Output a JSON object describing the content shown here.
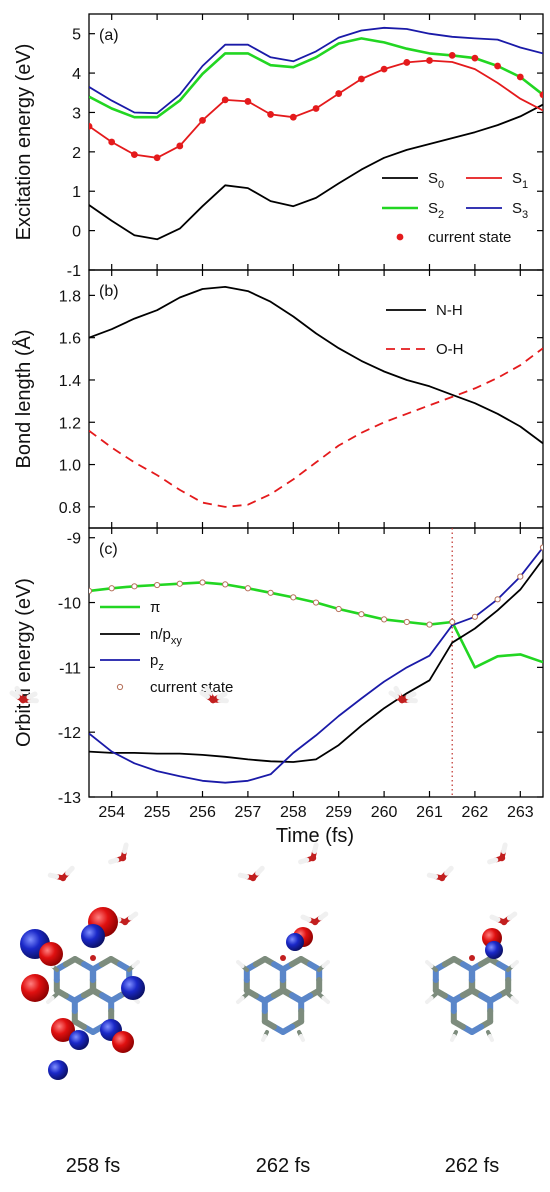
{
  "chart_data": [
    {
      "type": "line",
      "panel_label": "(a)",
      "xlim": [
        253.5,
        263.5
      ],
      "ylim": [
        -1,
        5.5
      ],
      "ylabel": "Excitation energy (eV)",
      "yticks": [
        5,
        4,
        3,
        2,
        1,
        0,
        -1
      ],
      "legend": {
        "placement": "bottom-right"
      },
      "series": [
        {
          "name": "S",
          "sub": "0",
          "color": "#000000",
          "style": "solid",
          "points": [
            [
              253.5,
              0.65
            ],
            [
              254,
              0.25
            ],
            [
              254.5,
              -0.12
            ],
            [
              255,
              -0.22
            ],
            [
              255.5,
              0.05
            ],
            [
              256,
              0.62
            ],
            [
              256.5,
              1.15
            ],
            [
              257,
              1.08
            ],
            [
              257.5,
              0.75
            ],
            [
              258,
              0.62
            ],
            [
              258.5,
              0.83
            ],
            [
              259,
              1.2
            ],
            [
              259.5,
              1.55
            ],
            [
              260,
              1.85
            ],
            [
              260.5,
              2.05
            ],
            [
              261,
              2.2
            ],
            [
              261.5,
              2.35
            ],
            [
              262,
              2.5
            ],
            [
              262.5,
              2.68
            ],
            [
              263,
              2.9
            ],
            [
              263.5,
              3.2
            ]
          ]
        },
        {
          "name": "S",
          "sub": "1",
          "color": "#e41a1c",
          "style": "solid",
          "points": [
            [
              253.5,
              2.65
            ],
            [
              254,
              2.25
            ],
            [
              254.5,
              1.93
            ],
            [
              255,
              1.85
            ],
            [
              255.5,
              2.15
            ],
            [
              256,
              2.8
            ],
            [
              256.5,
              3.32
            ],
            [
              257,
              3.28
            ],
            [
              257.5,
              2.95
            ],
            [
              258,
              2.88
            ],
            [
              258.5,
              3.1
            ],
            [
              259,
              3.48
            ],
            [
              259.5,
              3.85
            ],
            [
              260,
              4.1
            ],
            [
              260.5,
              4.27
            ],
            [
              261,
              4.32
            ],
            [
              261.5,
              4.28
            ],
            [
              262,
              4.1
            ],
            [
              262.5,
              3.75
            ],
            [
              263,
              3.35
            ],
            [
              263.5,
              3.05
            ]
          ]
        },
        {
          "name": "S",
          "sub": "2",
          "color": "#22d622",
          "style": "solid",
          "points": [
            [
              253.5,
              3.4
            ],
            [
              254,
              3.1
            ],
            [
              254.5,
              2.88
            ],
            [
              255,
              2.88
            ],
            [
              255.5,
              3.3
            ],
            [
              256,
              3.98
            ],
            [
              256.5,
              4.5
            ],
            [
              257,
              4.5
            ],
            [
              257.5,
              4.2
            ],
            [
              258,
              4.15
            ],
            [
              258.5,
              4.4
            ],
            [
              259,
              4.75
            ],
            [
              259.5,
              4.88
            ],
            [
              260,
              4.78
            ],
            [
              260.5,
              4.62
            ],
            [
              261,
              4.5
            ],
            [
              261.5,
              4.45
            ],
            [
              262,
              4.38
            ],
            [
              262.5,
              4.18
            ],
            [
              263,
              3.9
            ],
            [
              263.5,
              3.45
            ]
          ]
        },
        {
          "name": "S",
          "sub": "3",
          "color": "#1a1aa8",
          "style": "solid",
          "points": [
            [
              253.5,
              3.65
            ],
            [
              254,
              3.3
            ],
            [
              254.5,
              3.0
            ],
            [
              255,
              2.98
            ],
            [
              255.5,
              3.45
            ],
            [
              256,
              4.18
            ],
            [
              256.5,
              4.72
            ],
            [
              257,
              4.72
            ],
            [
              257.5,
              4.4
            ],
            [
              258,
              4.3
            ],
            [
              258.5,
              4.55
            ],
            [
              259,
              4.9
            ],
            [
              259.5,
              5.08
            ],
            [
              260,
              5.15
            ],
            [
              260.5,
              5.12
            ],
            [
              261,
              5.0
            ],
            [
              261.5,
              4.92
            ],
            [
              262,
              4.88
            ],
            [
              262.5,
              4.85
            ],
            [
              263,
              4.65
            ],
            [
              263.5,
              4.5
            ]
          ]
        },
        {
          "name": "current state",
          "kind": "markers",
          "marker": "filled-circle",
          "color": "#e41a1c",
          "points": [
            [
              253.5,
              2.65
            ],
            [
              254,
              2.25
            ],
            [
              254.5,
              1.93
            ],
            [
              255,
              1.85
            ],
            [
              255.5,
              2.15
            ],
            [
              256,
              2.8
            ],
            [
              256.5,
              3.32
            ],
            [
              257,
              3.28
            ],
            [
              257.5,
              2.95
            ],
            [
              258,
              2.88
            ],
            [
              258.5,
              3.1
            ],
            [
              259,
              3.48
            ],
            [
              259.5,
              3.85
            ],
            [
              260,
              4.1
            ],
            [
              260.5,
              4.27
            ],
            [
              261,
              4.32
            ],
            [
              261.5,
              4.45
            ],
            [
              262,
              4.38
            ],
            [
              262.5,
              4.18
            ],
            [
              263,
              3.9
            ],
            [
              263.5,
              3.45
            ]
          ]
        }
      ]
    },
    {
      "type": "line",
      "panel_label": "(b)",
      "xlim": [
        253.5,
        263.5
      ],
      "ylim": [
        0.7,
        1.92
      ],
      "ylabel": "Bond length (Å)",
      "yticks": [
        "1.8",
        "1.6",
        "1.4",
        "1.2",
        "1.0",
        "0.8"
      ],
      "legend": {
        "placement": "top-right"
      },
      "series": [
        {
          "name": "N-H",
          "color": "#000000",
          "style": "solid",
          "points": [
            [
              253.5,
              1.6
            ],
            [
              254,
              1.64
            ],
            [
              254.5,
              1.69
            ],
            [
              255,
              1.73
            ],
            [
              255.5,
              1.79
            ],
            [
              256,
              1.83
            ],
            [
              256.5,
              1.84
            ],
            [
              257,
              1.82
            ],
            [
              257.5,
              1.77
            ],
            [
              258,
              1.7
            ],
            [
              258.5,
              1.62
            ],
            [
              259,
              1.55
            ],
            [
              259.5,
              1.49
            ],
            [
              260,
              1.44
            ],
            [
              260.5,
              1.4
            ],
            [
              261,
              1.37
            ],
            [
              261.5,
              1.33
            ],
            [
              262,
              1.29
            ],
            [
              262.5,
              1.24
            ],
            [
              263,
              1.18
            ],
            [
              263.5,
              1.1
            ]
          ]
        },
        {
          "name": "O-H",
          "color": "#e41a1c",
          "style": "dashed",
          "points": [
            [
              253.5,
              1.16
            ],
            [
              254,
              1.08
            ],
            [
              254.5,
              1.01
            ],
            [
              255,
              0.95
            ],
            [
              255.5,
              0.88
            ],
            [
              256,
              0.82
            ],
            [
              256.5,
              0.8
            ],
            [
              257,
              0.81
            ],
            [
              257.5,
              0.86
            ],
            [
              258,
              0.93
            ],
            [
              258.5,
              1.01
            ],
            [
              259,
              1.09
            ],
            [
              259.5,
              1.15
            ],
            [
              260,
              1.2
            ],
            [
              260.5,
              1.24
            ],
            [
              261,
              1.28
            ],
            [
              261.5,
              1.32
            ],
            [
              262,
              1.36
            ],
            [
              262.5,
              1.41
            ],
            [
              263,
              1.47
            ],
            [
              263.5,
              1.55
            ]
          ]
        }
      ]
    },
    {
      "type": "line",
      "panel_label": "(c)",
      "xlim": [
        253.5,
        263.5
      ],
      "ylim": [
        -13,
        -8.85
      ],
      "ylabel": "Orbital energy (eV)",
      "xlabel": "Time (fs)",
      "xticks": [
        254,
        255,
        256,
        257,
        258,
        259,
        260,
        261,
        262,
        263
      ],
      "yticks": [
        -9,
        -10,
        -11,
        -12,
        -13
      ],
      "vline": {
        "x": 261.5,
        "style": "dotted",
        "color": "#c0302a"
      },
      "legend": {
        "placement": "middle-left"
      },
      "series": [
        {
          "name": "π",
          "color": "#22d622",
          "style": "solid",
          "points": [
            [
              253.5,
              -9.82
            ],
            [
              254,
              -9.78
            ],
            [
              254.5,
              -9.75
            ],
            [
              255,
              -9.73
            ],
            [
              255.5,
              -9.71
            ],
            [
              256,
              -9.69
            ],
            [
              256.5,
              -9.72
            ],
            [
              257,
              -9.78
            ],
            [
              257.5,
              -9.85
            ],
            [
              258,
              -9.92
            ],
            [
              258.5,
              -10.0
            ],
            [
              259,
              -10.1
            ],
            [
              259.5,
              -10.18
            ],
            [
              260,
              -10.26
            ],
            [
              260.5,
              -10.3
            ],
            [
              261,
              -10.34
            ],
            [
              261.5,
              -10.3
            ],
            [
              262,
              -11.0
            ],
            [
              262.5,
              -10.83
            ],
            [
              263,
              -10.8
            ],
            [
              263.5,
              -10.92
            ]
          ]
        },
        {
          "name": "n/p",
          "sub": "xy",
          "color": "#000000",
          "style": "solid",
          "points": [
            [
              253.5,
              -12.3
            ],
            [
              254,
              -12.32
            ],
            [
              254.5,
              -12.32
            ],
            [
              255,
              -12.33
            ],
            [
              255.5,
              -12.33
            ],
            [
              256,
              -12.35
            ],
            [
              256.5,
              -12.38
            ],
            [
              257,
              -12.42
            ],
            [
              257.5,
              -12.45
            ],
            [
              258,
              -12.46
            ],
            [
              258.5,
              -12.42
            ],
            [
              259,
              -12.2
            ],
            [
              259.5,
              -11.9
            ],
            [
              260,
              -11.63
            ],
            [
              260.5,
              -11.4
            ],
            [
              261,
              -11.2
            ],
            [
              261.5,
              -10.62
            ],
            [
              262,
              -10.4
            ],
            [
              262.5,
              -10.12
            ],
            [
              263,
              -9.8
            ],
            [
              263.5,
              -9.33
            ]
          ]
        },
        {
          "name": "p",
          "sub": "z",
          "color": "#1a1aa8",
          "style": "solid",
          "points": [
            [
              253.5,
              -12.02
            ],
            [
              254,
              -12.3
            ],
            [
              254.5,
              -12.48
            ],
            [
              255,
              -12.6
            ],
            [
              255.5,
              -12.68
            ],
            [
              256,
              -12.75
            ],
            [
              256.5,
              -12.78
            ],
            [
              257,
              -12.75
            ],
            [
              257.5,
              -12.65
            ],
            [
              258,
              -12.32
            ],
            [
              258.5,
              -12.05
            ],
            [
              259,
              -11.75
            ],
            [
              259.5,
              -11.48
            ],
            [
              260,
              -11.22
            ],
            [
              260.5,
              -11.0
            ],
            [
              261,
              -10.82
            ],
            [
              261.5,
              -10.35
            ],
            [
              262,
              -10.22
            ],
            [
              262.5,
              -9.95
            ],
            [
              263,
              -9.6
            ],
            [
              263.5,
              -9.15
            ]
          ]
        },
        {
          "name": "current state",
          "kind": "markers",
          "marker": "open-circle",
          "color": "#b5705a",
          "points": [
            [
              253.5,
              -9.82
            ],
            [
              254,
              -9.78
            ],
            [
              254.5,
              -9.75
            ],
            [
              255,
              -9.73
            ],
            [
              255.5,
              -9.71
            ],
            [
              256,
              -9.69
            ],
            [
              256.5,
              -9.72
            ],
            [
              257,
              -9.78
            ],
            [
              257.5,
              -9.85
            ],
            [
              258,
              -9.92
            ],
            [
              258.5,
              -10.0
            ],
            [
              259,
              -10.1
            ],
            [
              259.5,
              -10.18
            ],
            [
              260,
              -10.26
            ],
            [
              260.5,
              -10.3
            ],
            [
              261,
              -10.34
            ],
            [
              261.5,
              -10.3
            ],
            [
              262,
              -10.22
            ],
            [
              262.5,
              -9.95
            ],
            [
              263,
              -9.6
            ],
            [
              263.5,
              -9.15
            ]
          ]
        }
      ]
    }
  ],
  "snapshots": [
    {
      "caption": "258 fs"
    },
    {
      "caption": "262 fs"
    },
    {
      "caption": "262 fs"
    }
  ],
  "colors": {
    "atom_carbon": "#7d8c7d",
    "atom_nitrogen": "#5a86c9",
    "atom_oxygen": "#c21f1f",
    "atom_hydrogen": "#f0f0f0",
    "lobe_red": "#e01010",
    "lobe_blue": "#1a28c8"
  }
}
